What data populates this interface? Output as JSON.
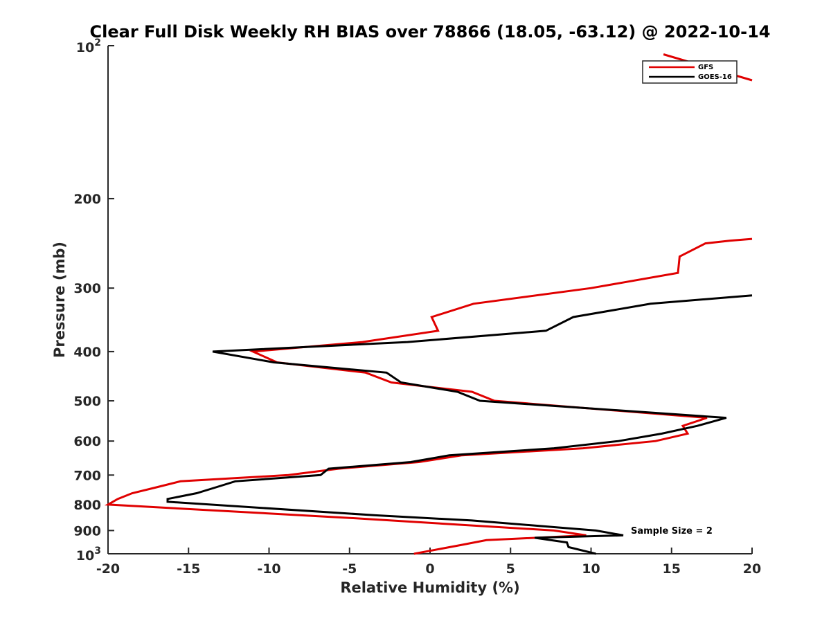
{
  "chart_data": {
    "type": "line",
    "title": "Clear Full Disk Weekly RH BIAS over 78866 (18.05, -63.12) @ 2022-10-14",
    "xlabel": "Relative Humidity (%)",
    "ylabel": "Pressure (mb)",
    "xlim": [
      -20,
      20
    ],
    "ylim": [
      100,
      1000
    ],
    "y_scale": "log",
    "y_reversed": true,
    "x_ticks": [
      "-20",
      "-15",
      "-10",
      "-5",
      "0",
      "5",
      "10",
      "15",
      "20"
    ],
    "y_ticks": [
      {
        "value": 100,
        "base": "10",
        "exp": "2"
      },
      {
        "value": 200,
        "label": "200"
      },
      {
        "value": 300,
        "label": "300"
      },
      {
        "value": 400,
        "label": "400"
      },
      {
        "value": 500,
        "label": "500"
      },
      {
        "value": 600,
        "label": "600"
      },
      {
        "value": 700,
        "label": "700"
      },
      {
        "value": 800,
        "label": "800"
      },
      {
        "value": 900,
        "label": "900"
      },
      {
        "value": 1000,
        "base": "10",
        "exp": "3"
      }
    ],
    "legend_position": "top-right",
    "grid": false,
    "annotation": "Sample Size = 2",
    "series": [
      {
        "name": "GFS",
        "color": "#e00000",
        "segments": [
          [
            {
              "x": 14.5,
              "y": 104
            },
            {
              "x": 20,
              "y": 117
            }
          ],
          [
            {
              "x": 20,
              "y": 240
            },
            {
              "x": 18.6,
              "y": 242
            },
            {
              "x": 17.1,
              "y": 245
            },
            {
              "x": 15.5,
              "y": 260
            },
            {
              "x": 15.4,
              "y": 280
            },
            {
              "x": 10,
              "y": 300
            },
            {
              "x": 2.7,
              "y": 322
            },
            {
              "x": 0.1,
              "y": 342
            },
            {
              "x": 0.5,
              "y": 364
            },
            {
              "x": -4.2,
              "y": 383
            },
            {
              "x": -11,
              "y": 400
            },
            {
              "x": -9.5,
              "y": 420
            },
            {
              "x": -4,
              "y": 440
            },
            {
              "x": -2.4,
              "y": 460
            },
            {
              "x": 2.6,
              "y": 480
            },
            {
              "x": 4,
              "y": 500
            },
            {
              "x": 17.2,
              "y": 540
            },
            {
              "x": 15.7,
              "y": 560
            },
            {
              "x": 16,
              "y": 580
            },
            {
              "x": 14,
              "y": 600
            },
            {
              "x": 9.5,
              "y": 620
            },
            {
              "x": 2,
              "y": 640
            },
            {
              "x": -0.7,
              "y": 660
            },
            {
              "x": -5.7,
              "y": 680
            },
            {
              "x": -8.8,
              "y": 700
            },
            {
              "x": -15.5,
              "y": 720
            },
            {
              "x": -17,
              "y": 740
            },
            {
              "x": -18.5,
              "y": 760
            },
            {
              "x": -19.4,
              "y": 780
            },
            {
              "x": -20,
              "y": 800
            },
            {
              "x": -5,
              "y": 850
            },
            {
              "x": 7.7,
              "y": 900
            },
            {
              "x": 9.7,
              "y": 920
            },
            {
              "x": 3.5,
              "y": 940
            },
            {
              "x": 2,
              "y": 960
            },
            {
              "x": -1,
              "y": 1000
            }
          ]
        ]
      },
      {
        "name": "GOES-16",
        "color": "#000000",
        "segments": [
          [
            {
              "x": 20,
              "y": 310
            },
            {
              "x": 13.7,
              "y": 322
            },
            {
              "x": 8.9,
              "y": 342
            },
            {
              "x": 7.2,
              "y": 364
            },
            {
              "x": -1.4,
              "y": 383
            },
            {
              "x": -13.5,
              "y": 400
            },
            {
              "x": -9.7,
              "y": 420
            },
            {
              "x": -2.7,
              "y": 440
            },
            {
              "x": -1.8,
              "y": 460
            },
            {
              "x": 1.7,
              "y": 480
            },
            {
              "x": 3.1,
              "y": 500
            },
            {
              "x": 18.4,
              "y": 540
            },
            {
              "x": 16.6,
              "y": 560
            },
            {
              "x": 14.4,
              "y": 580
            },
            {
              "x": 11.7,
              "y": 600
            },
            {
              "x": 7.7,
              "y": 620
            },
            {
              "x": 1.2,
              "y": 640
            },
            {
              "x": -1.2,
              "y": 660
            },
            {
              "x": -6.3,
              "y": 680
            },
            {
              "x": -6.8,
              "y": 700
            },
            {
              "x": -12.1,
              "y": 720
            },
            {
              "x": -13.3,
              "y": 740
            },
            {
              "x": -14.5,
              "y": 760
            },
            {
              "x": -16.3,
              "y": 780
            },
            {
              "x": -16.3,
              "y": 790
            },
            {
              "x": -3.4,
              "y": 840
            },
            {
              "x": 2.6,
              "y": 860
            },
            {
              "x": 10.3,
              "y": 900
            },
            {
              "x": 12,
              "y": 920
            },
            {
              "x": 6.5,
              "y": 930
            },
            {
              "x": 8.5,
              "y": 950
            },
            {
              "x": 8.6,
              "y": 970
            },
            {
              "x": 10.3,
              "y": 1000
            }
          ]
        ]
      }
    ]
  }
}
